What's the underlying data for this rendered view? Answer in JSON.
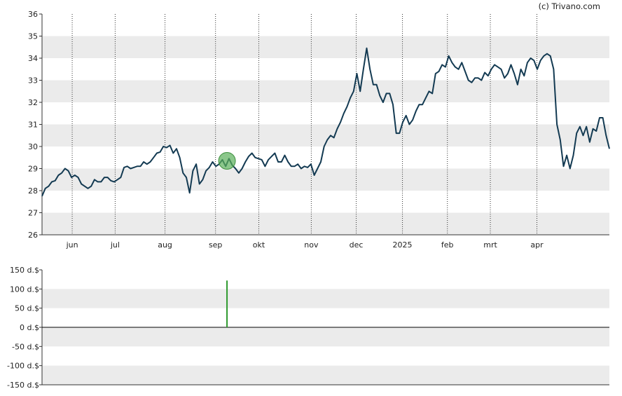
{
  "credit": "(c) Trivano.com",
  "colors": {
    "line": "#133a52",
    "band": "#ebebeb",
    "marker_fill": "#5aaf5a",
    "volume_bar": "#2e9a2e",
    "axis": "#333333"
  },
  "chart_data": [
    {
      "type": "line",
      "title": "",
      "ylim": [
        26,
        36
      ],
      "yticks": [
        26,
        27,
        28,
        29,
        30,
        31,
        32,
        33,
        34,
        35,
        36
      ],
      "xticks": [
        {
          "label": "jun",
          "x": 9.2
        },
        {
          "label": "jul",
          "x": 22.3
        },
        {
          "label": "aug",
          "x": 37.5
        },
        {
          "label": "sep",
          "x": 52.9
        },
        {
          "label": "okt",
          "x": 66.1
        },
        {
          "label": "nov",
          "x": 82.1
        },
        {
          "label": "dec",
          "x": 95.8
        },
        {
          "label": "2025",
          "x": 109.9
        },
        {
          "label": "feb",
          "x": 123.6
        },
        {
          "label": "mrt",
          "x": 136.7
        },
        {
          "label": "apr",
          "x": 150.9
        }
      ],
      "xlim": [
        0,
        173
      ],
      "grid_x": "dotted",
      "bands": "alternating",
      "marker": {
        "x": 56.4,
        "y": 29.35
      },
      "series": [
        {
          "values": [
            [
              0,
              27.75
            ],
            [
              1,
              28.1
            ],
            [
              2,
              28.2
            ],
            [
              3,
              28.4
            ],
            [
              4,
              28.45
            ],
            [
              5,
              28.7
            ],
            [
              6,
              28.8
            ],
            [
              7,
              29.0
            ],
            [
              8,
              28.9
            ],
            [
              9,
              28.6
            ],
            [
              10,
              28.7
            ],
            [
              11,
              28.6
            ],
            [
              12,
              28.3
            ],
            [
              13,
              28.2
            ],
            [
              14,
              28.1
            ],
            [
              15,
              28.2
            ],
            [
              16,
              28.5
            ],
            [
              17,
              28.4
            ],
            [
              18,
              28.4
            ],
            [
              19,
              28.6
            ],
            [
              20,
              28.6
            ],
            [
              21,
              28.45
            ],
            [
              22,
              28.4
            ],
            [
              23,
              28.5
            ],
            [
              24,
              28.6
            ],
            [
              25,
              29.05
            ],
            [
              26,
              29.1
            ],
            [
              27,
              29.0
            ],
            [
              28,
              29.05
            ],
            [
              29,
              29.1
            ],
            [
              30,
              29.1
            ],
            [
              31,
              29.3
            ],
            [
              32,
              29.2
            ],
            [
              33,
              29.3
            ],
            [
              34,
              29.5
            ],
            [
              35,
              29.7
            ],
            [
              36,
              29.75
            ],
            [
              37,
              30.0
            ],
            [
              38,
              29.95
            ],
            [
              39,
              30.05
            ],
            [
              40,
              29.7
            ],
            [
              41,
              29.9
            ],
            [
              42,
              29.5
            ],
            [
              43,
              28.8
            ],
            [
              44,
              28.6
            ],
            [
              45,
              27.9
            ],
            [
              46,
              28.9
            ],
            [
              47,
              29.2
            ],
            [
              48,
              28.3
            ],
            [
              49,
              28.5
            ],
            [
              50,
              28.9
            ],
            [
              51,
              29.05
            ],
            [
              52,
              29.3
            ],
            [
              53,
              29.1
            ],
            [
              54,
              29.2
            ],
            [
              55,
              29.4
            ],
            [
              56,
              29.1
            ],
            [
              57,
              29.45
            ],
            [
              58,
              29.15
            ],
            [
              59,
              29.0
            ],
            [
              60,
              28.8
            ],
            [
              61,
              29.0
            ],
            [
              62,
              29.3
            ],
            [
              63,
              29.55
            ],
            [
              64,
              29.7
            ],
            [
              65,
              29.5
            ],
            [
              66,
              29.45
            ],
            [
              67,
              29.4
            ],
            [
              68,
              29.1
            ],
            [
              69,
              29.4
            ],
            [
              70,
              29.55
            ],
            [
              71,
              29.7
            ],
            [
              72,
              29.3
            ],
            [
              73,
              29.3
            ],
            [
              74,
              29.6
            ],
            [
              75,
              29.3
            ],
            [
              76,
              29.1
            ],
            [
              77,
              29.1
            ],
            [
              78,
              29.2
            ],
            [
              79,
              29.0
            ],
            [
              80,
              29.1
            ],
            [
              81,
              29.05
            ],
            [
              82,
              29.2
            ],
            [
              83,
              28.7
            ],
            [
              84,
              29.0
            ],
            [
              85,
              29.3
            ],
            [
              86,
              30.0
            ],
            [
              87,
              30.3
            ],
            [
              88,
              30.5
            ],
            [
              89,
              30.4
            ],
            [
              90,
              30.8
            ],
            [
              91,
              31.1
            ],
            [
              92,
              31.5
            ],
            [
              93,
              31.8
            ],
            [
              94,
              32.2
            ],
            [
              95,
              32.5
            ],
            [
              96,
              33.3
            ],
            [
              97,
              32.5
            ],
            [
              98,
              33.5
            ],
            [
              99,
              34.45
            ],
            [
              100,
              33.5
            ],
            [
              101,
              32.8
            ],
            [
              102,
              32.8
            ],
            [
              103,
              32.3
            ],
            [
              104,
              32.0
            ],
            [
              105,
              32.4
            ],
            [
              106,
              32.4
            ],
            [
              107,
              31.9
            ],
            [
              108,
              30.6
            ],
            [
              109,
              30.6
            ],
            [
              110,
              31.1
            ],
            [
              111,
              31.4
            ],
            [
              112,
              31.0
            ],
            [
              113,
              31.2
            ],
            [
              114,
              31.6
            ],
            [
              115,
              31.9
            ],
            [
              116,
              31.9
            ],
            [
              117,
              32.2
            ],
            [
              118,
              32.5
            ],
            [
              119,
              32.4
            ],
            [
              120,
              33.3
            ],
            [
              121,
              33.4
            ],
            [
              122,
              33.7
            ],
            [
              123,
              33.6
            ],
            [
              124,
              34.1
            ],
            [
              125,
              33.8
            ],
            [
              126,
              33.6
            ],
            [
              127,
              33.5
            ],
            [
              128,
              33.8
            ],
            [
              129,
              33.4
            ],
            [
              130,
              33.0
            ],
            [
              131,
              32.9
            ],
            [
              132,
              33.1
            ],
            [
              133,
              33.1
            ],
            [
              134,
              33.0
            ],
            [
              135,
              33.35
            ],
            [
              136,
              33.2
            ],
            [
              137,
              33.5
            ],
            [
              138,
              33.7
            ],
            [
              139,
              33.6
            ],
            [
              140,
              33.5
            ],
            [
              141,
              33.1
            ],
            [
              142,
              33.3
            ],
            [
              143,
              33.7
            ],
            [
              144,
              33.3
            ],
            [
              145,
              32.8
            ],
            [
              146,
              33.5
            ],
            [
              147,
              33.2
            ],
            [
              148,
              33.8
            ],
            [
              149,
              34.0
            ],
            [
              150,
              33.9
            ],
            [
              151,
              33.5
            ],
            [
              152,
              33.9
            ],
            [
              153,
              34.1
            ],
            [
              154,
              34.2
            ],
            [
              155,
              34.1
            ],
            [
              156,
              33.5
            ],
            [
              157,
              31.0
            ],
            [
              158,
              30.3
            ],
            [
              159,
              29.1
            ],
            [
              160,
              29.6
            ],
            [
              161,
              29.0
            ],
            [
              162,
              29.6
            ],
            [
              163,
              30.6
            ],
            [
              164,
              30.9
            ],
            [
              165,
              30.5
            ],
            [
              166,
              30.9
            ],
            [
              167,
              30.2
            ],
            [
              168,
              30.8
            ],
            [
              169,
              30.7
            ],
            [
              170,
              31.3
            ],
            [
              171,
              31.3
            ],
            [
              172,
              30.5
            ],
            [
              173,
              29.9
            ]
          ]
        }
      ]
    },
    {
      "type": "bar",
      "title": "",
      "ylim": [
        -150,
        150
      ],
      "yticks": [
        -150,
        -100,
        -50,
        0,
        50,
        100,
        150
      ],
      "ytick_suffix": " d.$",
      "bars": [
        {
          "x": 56.4,
          "value": 122
        }
      ]
    }
  ]
}
